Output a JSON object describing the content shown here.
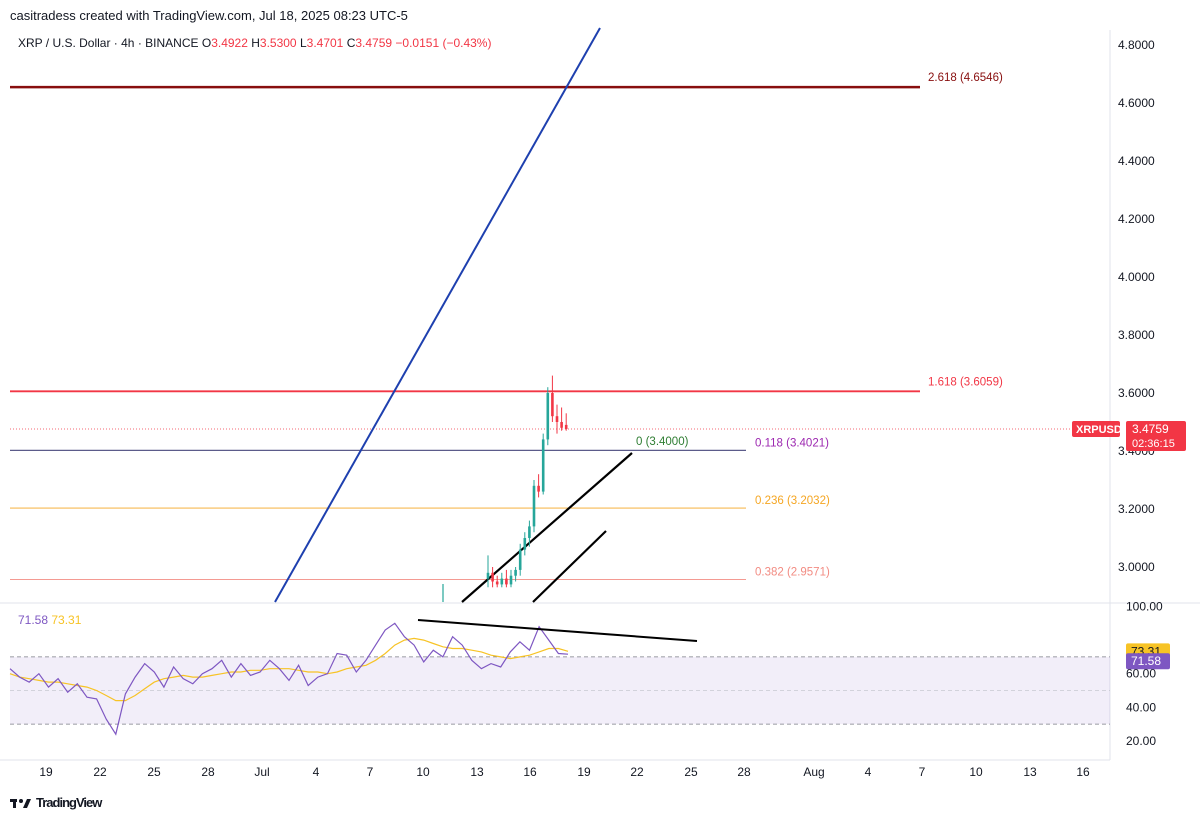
{
  "header": {
    "author_line": "casitradess created with TradingView.com, Jul 18, 2025 08:23 UTC-5"
  },
  "legend": {
    "symbol": "XRP / U.S. Dollar · 4h · BINANCE",
    "o_label": "O",
    "o": "3.4922",
    "h_label": "H",
    "h": "3.5300",
    "l_label": "L",
    "l": "3.4701",
    "c_label": "C",
    "c": "3.4759",
    "change": "−0.0151 (−0.43%)"
  },
  "rsi_legend": {
    "rsi": "71.58",
    "ma": "73.31"
  },
  "footer": {
    "brand": "TradingView"
  },
  "colors": {
    "up": "#26a69a",
    "down": "#f23645",
    "trend_blue": "#1e40af",
    "fib_2618": "#880e0e",
    "fib_1618": "#f23645",
    "fib_0": "#5b5b8a",
    "fib_0236": "#f5b260",
    "fib_0382": "#f4a0a0",
    "rsi": "#7e57c2",
    "rsi_ma": "#f7c325"
  },
  "chart_data": [
    {
      "type": "candlestick",
      "symbol": "XRPUSD",
      "ylim": [
        2.9,
        4.85
      ],
      "y_ticks": [
        "4.8000",
        "4.6000",
        "4.4000",
        "4.2000",
        "4.0000",
        "3.8000",
        "3.6000",
        "3.2000",
        "3.0000"
      ],
      "x_ticks": [
        "19",
        "22",
        "25",
        "28",
        "Jul",
        "4",
        "7",
        "10",
        "13",
        "16",
        "19",
        "22",
        "25",
        "28",
        "Aug",
        "4",
        "7",
        "10",
        "13",
        "16"
      ],
      "last_price": {
        "label": "XRPUSD",
        "value": "3.4759",
        "countdown": "02:36:15",
        "y": 3.4759
      },
      "fib_levels": [
        {
          "label": "2.618 (4.6546)",
          "y": 4.6546,
          "color": "#880e0e"
        },
        {
          "label": "1.618 (3.6059)",
          "y": 3.6059,
          "color": "#f23645"
        },
        {
          "label": "0 (3.4000)",
          "y": 3.4,
          "color": "#2e7d32"
        },
        {
          "label": "0.118 (3.4021)",
          "y": 3.4021,
          "color": "#9c27b0"
        },
        {
          "label": "0.236 (3.2032)",
          "y": 3.2032,
          "color": "#f5a623"
        },
        {
          "label": "0.382 (2.9571)",
          "y": 2.9571,
          "color": "#f28b82"
        }
      ],
      "candles": [
        {
          "o": 2.96,
          "h": 3.04,
          "l": 2.93,
          "c": 2.98
        },
        {
          "o": 2.98,
          "h": 3.0,
          "l": 2.93,
          "c": 2.95
        },
        {
          "o": 2.95,
          "h": 2.97,
          "l": 2.93,
          "c": 2.94
        },
        {
          "o": 2.94,
          "h": 2.98,
          "l": 2.93,
          "c": 2.96
        },
        {
          "o": 2.96,
          "h": 2.99,
          "l": 2.93,
          "c": 2.94
        },
        {
          "o": 2.94,
          "h": 2.99,
          "l": 2.93,
          "c": 2.97
        },
        {
          "o": 2.97,
          "h": 3.0,
          "l": 2.95,
          "c": 2.99
        },
        {
          "o": 2.99,
          "h": 3.08,
          "l": 2.97,
          "c": 3.06
        },
        {
          "o": 3.06,
          "h": 3.12,
          "l": 3.04,
          "c": 3.1
        },
        {
          "o": 3.1,
          "h": 3.16,
          "l": 3.07,
          "c": 3.14
        },
        {
          "o": 3.14,
          "h": 3.3,
          "l": 3.12,
          "c": 3.28
        },
        {
          "o": 3.28,
          "h": 3.32,
          "l": 3.24,
          "c": 3.26
        },
        {
          "o": 3.26,
          "h": 3.46,
          "l": 3.25,
          "c": 3.44
        },
        {
          "o": 3.44,
          "h": 3.62,
          "l": 3.42,
          "c": 3.6
        },
        {
          "o": 3.6,
          "h": 3.66,
          "l": 3.5,
          "c": 3.52
        },
        {
          "o": 3.52,
          "h": 3.56,
          "l": 3.46,
          "c": 3.5
        },
        {
          "o": 3.5,
          "h": 3.55,
          "l": 3.47,
          "c": 3.48
        },
        {
          "o": 3.49,
          "h": 3.53,
          "l": 3.47,
          "c": 3.4759
        }
      ],
      "rsi": {
        "ylim": [
          15,
          100
        ],
        "y_ticks": [
          "100.00",
          "60.00",
          "40.00",
          "20.00"
        ],
        "band": [
          30,
          70
        ],
        "current_rsi": "71.58",
        "current_ma": "73.31",
        "rsi_values": [
          63,
          58,
          55,
          60,
          52,
          57,
          49,
          54,
          46,
          45,
          33,
          24,
          48,
          58,
          66,
          61,
          52,
          64,
          57,
          54,
          60,
          63,
          68,
          58,
          66,
          59,
          61,
          68,
          63,
          56,
          65,
          53,
          58,
          60,
          72,
          71,
          61,
          68,
          77,
          86,
          90,
          82,
          77,
          67,
          74,
          70,
          82,
          77,
          68,
          63,
          66,
          64,
          73,
          79,
          74,
          88,
          80,
          72,
          71.58
        ],
        "ma_values": [
          60,
          58,
          57,
          56,
          55,
          55,
          54,
          53,
          52,
          50,
          47,
          44,
          44,
          47,
          51,
          55,
          57,
          58,
          59,
          58,
          58,
          59,
          60,
          61,
          61,
          62,
          62,
          63,
          63,
          63,
          62,
          61,
          61,
          60,
          61,
          63,
          64,
          65,
          68,
          72,
          77,
          80,
          81,
          80,
          78,
          76,
          75,
          75,
          74,
          73,
          71,
          70,
          69,
          70,
          71,
          73,
          75,
          75,
          73.31
        ]
      }
    }
  ]
}
